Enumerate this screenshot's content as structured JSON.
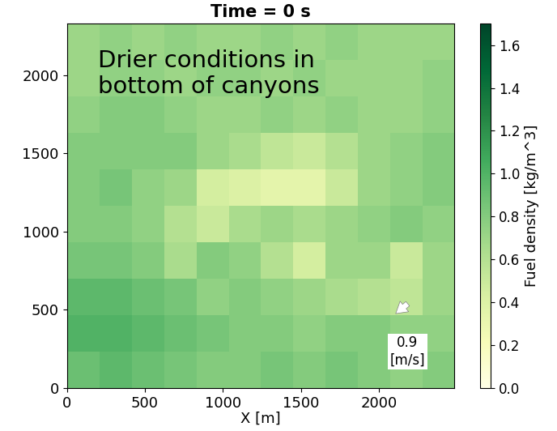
{
  "chart_data": {
    "type": "heatmap",
    "title": "Time = 0 s",
    "x_label": "X [m]",
    "xlim": [
      0,
      2480
    ],
    "ylim": [
      0,
      2330
    ],
    "xticks": [
      0,
      500,
      1000,
      1500,
      2000
    ],
    "yticks": [
      0,
      500,
      1000,
      1500,
      2000
    ],
    "annotations": [
      "Drier conditions in\nbottom of canyons",
      "0.9\n[m/s]"
    ],
    "cells": [
      [
        0.9,
        0.95,
        0.9,
        0.85,
        0.8,
        0.8,
        0.85,
        0.8,
        0.85,
        0.8,
        0.75,
        0.8
      ],
      [
        1.0,
        1.0,
        0.95,
        0.9,
        0.85,
        0.8,
        0.8,
        0.75,
        0.8,
        0.8,
        0.75,
        0.75
      ],
      [
        0.95,
        0.95,
        0.9,
        0.85,
        0.75,
        0.8,
        0.75,
        0.7,
        0.65,
        0.6,
        0.55,
        0.7
      ],
      [
        0.85,
        0.85,
        0.8,
        0.65,
        0.8,
        0.75,
        0.6,
        0.45,
        0.7,
        0.7,
        0.5,
        0.7
      ],
      [
        0.8,
        0.8,
        0.75,
        0.6,
        0.5,
        0.65,
        0.7,
        0.65,
        0.7,
        0.75,
        0.8,
        0.75
      ],
      [
        0.8,
        0.85,
        0.75,
        0.7,
        0.45,
        0.4,
        0.35,
        0.35,
        0.5,
        0.7,
        0.75,
        0.8
      ],
      [
        0.8,
        0.8,
        0.8,
        0.8,
        0.7,
        0.65,
        0.55,
        0.5,
        0.6,
        0.7,
        0.75,
        0.8
      ],
      [
        0.75,
        0.8,
        0.8,
        0.75,
        0.7,
        0.7,
        0.75,
        0.7,
        0.75,
        0.7,
        0.7,
        0.75
      ],
      [
        0.7,
        0.75,
        0.75,
        0.7,
        0.75,
        0.75,
        0.7,
        0.75,
        0.7,
        0.7,
        0.7,
        0.75
      ],
      [
        0.7,
        0.75,
        0.7,
        0.75,
        0.7,
        0.7,
        0.75,
        0.7,
        0.75,
        0.7,
        0.7,
        0.7
      ]
    ],
    "colorbar": {
      "label": "Fuel density [kg/m^3]",
      "range": [
        0,
        1.7
      ],
      "ticks": [
        {
          "value": 0,
          "label": "0.0"
        },
        0.2,
        0.4,
        0.6,
        0.8,
        {
          "value": 1,
          "label": "1.0"
        },
        1.2,
        1.4,
        1.6
      ]
    }
  }
}
